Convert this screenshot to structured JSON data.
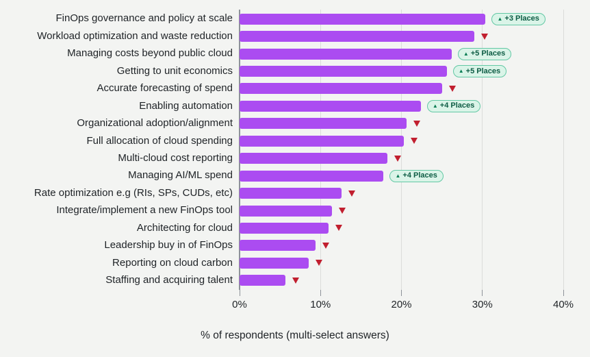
{
  "chart_data": {
    "type": "bar",
    "orientation": "horizontal",
    "title": "",
    "xlabel": "% of respondents (multi-select answers)",
    "ylabel": "",
    "xlim": [
      0,
      40
    ],
    "grid": true,
    "legend": null,
    "x_ticks": [
      {
        "value": 0,
        "label": "0%"
      },
      {
        "value": 10,
        "label": "10%"
      },
      {
        "value": 20,
        "label": "20%"
      },
      {
        "value": 30,
        "label": "30%"
      },
      {
        "value": 40,
        "label": "40%"
      }
    ],
    "categories": [
      "FinOps governance and policy at scale",
      "Workload optimization and waste reduction",
      "Managing costs beyond public cloud",
      "Getting to unit economics",
      "Accurate forecasting of spend",
      "Enabling automation",
      "Organizational adoption/alignment",
      "Full allocation of cloud spending",
      "Multi-cloud cost reporting",
      "Managing AI/ML spend",
      "Rate optimization e.g (RIs, SPs, CUDs, etc)",
      "Integrate/implement a new FinOps tool",
      "Architecting for cloud",
      "Leadership buy in of FinOps",
      "Reporting on cloud carbon",
      "Staffing and acquiring talent"
    ],
    "values": [
      30.4,
      29.0,
      26.2,
      25.6,
      25.0,
      22.4,
      20.6,
      20.3,
      18.3,
      17.8,
      12.6,
      11.4,
      11.0,
      9.4,
      8.5,
      5.7
    ],
    "movements": [
      {
        "direction": "up",
        "label": "+3 Places"
      },
      {
        "direction": "down",
        "label": null
      },
      {
        "direction": "up",
        "label": "+5 Places"
      },
      {
        "direction": "up",
        "label": "+5 Places"
      },
      {
        "direction": "down",
        "label": null
      },
      {
        "direction": "up",
        "label": "+4 Places"
      },
      {
        "direction": "down",
        "label": null
      },
      {
        "direction": "down",
        "label": null
      },
      {
        "direction": "down",
        "label": null
      },
      {
        "direction": "up",
        "label": "+4 Places"
      },
      {
        "direction": "down",
        "label": null
      },
      {
        "direction": "down",
        "label": null
      },
      {
        "direction": "down",
        "label": null
      },
      {
        "direction": "down",
        "label": null
      },
      {
        "direction": "down",
        "label": null
      },
      {
        "direction": "down",
        "label": null
      }
    ],
    "up_marker_glyph": "▲",
    "down_marker_glyph": "▼"
  },
  "colors": {
    "background": "#f3f4f2",
    "bar": "#ab4cf1",
    "axis_line": "#8d9299",
    "gridline": "#dbdcda",
    "text": "#1e2226",
    "badge_background": "#daf4e8",
    "badge_border": "#62c8a4",
    "badge_text": "#0d5c44",
    "badge_arrow": "#0a7d54",
    "down_marker": "#c11f2f"
  }
}
